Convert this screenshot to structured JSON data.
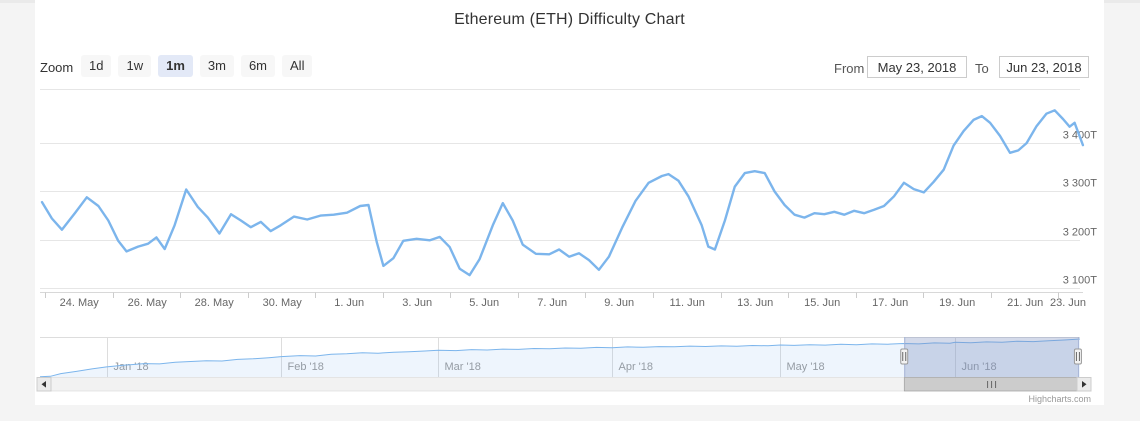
{
  "header": {
    "title": "Ethereum (ETH) Difficulty Chart"
  },
  "range_selector": {
    "zoom_label": "Zoom",
    "buttons": [
      {
        "label": "1d",
        "selected": false
      },
      {
        "label": "1w",
        "selected": false
      },
      {
        "label": "1m",
        "selected": true
      },
      {
        "label": "3m",
        "selected": false
      },
      {
        "label": "6m",
        "selected": false
      },
      {
        "label": "All",
        "selected": false
      }
    ],
    "from_label": "From",
    "from_value": "May 23, 2018",
    "to_label": "To",
    "to_value": "Jun 23, 2018"
  },
  "credit": "Highcharts.com",
  "colors": {
    "line": "#7cb5ec",
    "navigator_fill": "rgba(124,181,236,0.13)",
    "mask_fill": "rgba(120,140,190,0.32)",
    "gridline": "#e6e6e6",
    "axis_line": "#d8d8d8",
    "tick": "#cccccc",
    "axis_label": "#666666",
    "nav_label": "#999999",
    "selected_button_bg": "#e3e9f7"
  },
  "chart_data": [
    {
      "type": "line",
      "title": "Ethereum (ETH) Difficulty Chart",
      "xlabel": "",
      "ylabel": "",
      "grid": true,
      "legend": false,
      "x_unit": "days_since_2018-05-23",
      "x_range": [
        0,
        31.4
      ],
      "y_range": [
        3092,
        3512
      ],
      "y_ticks": [
        {
          "v": 3400,
          "label": "3 400T"
        },
        {
          "v": 3300,
          "label": "3 300T"
        },
        {
          "v": 3200,
          "label": "3 200T"
        },
        {
          "v": 3100,
          "label": "3 100T"
        }
      ],
      "x_tick_labels": [
        "24. May",
        "26. May",
        "28. May",
        "30. May",
        "1. Jun",
        "3. Jun",
        "5. Jun",
        "7. Jun",
        "9. Jun",
        "11. Jun",
        "13. Jun",
        "15. Jun",
        "17. Jun",
        "19. Jun",
        "21. Jun",
        "23. Jun"
      ],
      "series": [
        {
          "name": "Difficulty",
          "unit": "T",
          "points": [
            [
              0,
              3278
            ],
            [
              0.3,
              3244
            ],
            [
              0.6,
              3221
            ],
            [
              1.0,
              3256
            ],
            [
              1.35,
              3288
            ],
            [
              1.7,
              3270
            ],
            [
              2.0,
              3240
            ],
            [
              2.3,
              3198
            ],
            [
              2.55,
              3176
            ],
            [
              2.9,
              3186
            ],
            [
              3.2,
              3192
            ],
            [
              3.45,
              3205
            ],
            [
              3.7,
              3181
            ],
            [
              4.0,
              3230
            ],
            [
              4.35,
              3304
            ],
            [
              4.7,
              3268
            ],
            [
              5.0,
              3246
            ],
            [
              5.35,
              3213
            ],
            [
              5.7,
              3253
            ],
            [
              6.0,
              3240
            ],
            [
              6.3,
              3226
            ],
            [
              6.6,
              3237
            ],
            [
              6.9,
              3218
            ],
            [
              7.2,
              3230
            ],
            [
              7.6,
              3248
            ],
            [
              8.0,
              3242
            ],
            [
              8.4,
              3250
            ],
            [
              8.8,
              3252
            ],
            [
              9.2,
              3256
            ],
            [
              9.6,
              3270
            ],
            [
              9.85,
              3272
            ],
            [
              10.1,
              3195
            ],
            [
              10.3,
              3146
            ],
            [
              10.6,
              3162
            ],
            [
              10.9,
              3198
            ],
            [
              11.3,
              3202
            ],
            [
              11.7,
              3199
            ],
            [
              12.0,
              3206
            ],
            [
              12.3,
              3185
            ],
            [
              12.6,
              3140
            ],
            [
              12.9,
              3127
            ],
            [
              13.2,
              3160
            ],
            [
              13.6,
              3230
            ],
            [
              13.9,
              3276
            ],
            [
              14.2,
              3240
            ],
            [
              14.5,
              3190
            ],
            [
              14.9,
              3171
            ],
            [
              15.3,
              3170
            ],
            [
              15.6,
              3180
            ],
            [
              15.9,
              3165
            ],
            [
              16.2,
              3172
            ],
            [
              16.5,
              3158
            ],
            [
              16.8,
              3138
            ],
            [
              17.1,
              3165
            ],
            [
              17.5,
              3225
            ],
            [
              17.9,
              3280
            ],
            [
              18.3,
              3318
            ],
            [
              18.7,
              3332
            ],
            [
              18.9,
              3336
            ],
            [
              19.2,
              3322
            ],
            [
              19.5,
              3290
            ],
            [
              19.9,
              3230
            ],
            [
              20.1,
              3186
            ],
            [
              20.3,
              3180
            ],
            [
              20.6,
              3240
            ],
            [
              20.9,
              3310
            ],
            [
              21.2,
              3338
            ],
            [
              21.5,
              3342
            ],
            [
              21.8,
              3338
            ],
            [
              22.1,
              3300
            ],
            [
              22.4,
              3272
            ],
            [
              22.7,
              3252
            ],
            [
              23.0,
              3246
            ],
            [
              23.3,
              3255
            ],
            [
              23.6,
              3253
            ],
            [
              23.9,
              3258
            ],
            [
              24.2,
              3252
            ],
            [
              24.5,
              3260
            ],
            [
              24.8,
              3255
            ],
            [
              25.1,
              3262
            ],
            [
              25.4,
              3270
            ],
            [
              25.7,
              3290
            ],
            [
              26.0,
              3318
            ],
            [
              26.3,
              3305
            ],
            [
              26.6,
              3298
            ],
            [
              26.9,
              3320
            ],
            [
              27.2,
              3345
            ],
            [
              27.5,
              3395
            ],
            [
              27.8,
              3425
            ],
            [
              28.1,
              3448
            ],
            [
              28.35,
              3456
            ],
            [
              28.6,
              3442
            ],
            [
              28.9,
              3415
            ],
            [
              29.2,
              3380
            ],
            [
              29.45,
              3385
            ],
            [
              29.7,
              3400
            ],
            [
              30.0,
              3435
            ],
            [
              30.3,
              3461
            ],
            [
              30.55,
              3468
            ],
            [
              30.8,
              3450
            ],
            [
              31.0,
              3434
            ],
            [
              31.15,
              3442
            ],
            [
              31.4,
              3396
            ]
          ]
        }
      ]
    },
    {
      "type": "area",
      "name": "navigator",
      "x_unit": "fraction_of_range_Dec2017_to_Jun23_2018",
      "y_range": [
        2450,
        3500
      ],
      "month_ticks": [
        {
          "t": 0.064,
          "label": "Jan '18"
        },
        {
          "t": 0.232,
          "label": "Feb '18"
        },
        {
          "t": 0.383,
          "label": "Mar '18"
        },
        {
          "t": 0.55,
          "label": "Apr '18"
        },
        {
          "t": 0.712,
          "label": "May '18"
        },
        {
          "t": 0.88,
          "label": "Jun '18"
        }
      ],
      "selected_range_t": [
        0.831,
        0.998
      ],
      "points": [
        [
          0,
          2455
        ],
        [
          0.01,
          2468
        ],
        [
          0.02,
          2540
        ],
        [
          0.035,
          2598
        ],
        [
          0.05,
          2662
        ],
        [
          0.064,
          2715
        ],
        [
          0.08,
          2758
        ],
        [
          0.1,
          2802
        ],
        [
          0.115,
          2793
        ],
        [
          0.13,
          2838
        ],
        [
          0.145,
          2856
        ],
        [
          0.16,
          2878
        ],
        [
          0.175,
          2871
        ],
        [
          0.19,
          2912
        ],
        [
          0.205,
          2928
        ],
        [
          0.22,
          2957
        ],
        [
          0.232,
          2985
        ],
        [
          0.25,
          3012
        ],
        [
          0.265,
          3002
        ],
        [
          0.28,
          3048
        ],
        [
          0.295,
          3060
        ],
        [
          0.31,
          3085
        ],
        [
          0.325,
          3076
        ],
        [
          0.34,
          3102
        ],
        [
          0.355,
          3115
        ],
        [
          0.37,
          3132
        ],
        [
          0.383,
          3150
        ],
        [
          0.4,
          3142
        ],
        [
          0.415,
          3168
        ],
        [
          0.43,
          3158
        ],
        [
          0.445,
          3182
        ],
        [
          0.46,
          3174
        ],
        [
          0.475,
          3198
        ],
        [
          0.49,
          3190
        ],
        [
          0.505,
          3212
        ],
        [
          0.52,
          3204
        ],
        [
          0.535,
          3226
        ],
        [
          0.55,
          3218
        ],
        [
          0.565,
          3240
        ],
        [
          0.58,
          3230
        ],
        [
          0.595,
          3248
        ],
        [
          0.61,
          3242
        ],
        [
          0.625,
          3260
        ],
        [
          0.64,
          3250
        ],
        [
          0.655,
          3266
        ],
        [
          0.67,
          3258
        ],
        [
          0.685,
          3278
        ],
        [
          0.7,
          3270
        ],
        [
          0.712,
          3290
        ],
        [
          0.725,
          3280
        ],
        [
          0.74,
          3298
        ],
        [
          0.755,
          3288
        ],
        [
          0.77,
          3308
        ],
        [
          0.785,
          3298
        ],
        [
          0.8,
          3318
        ],
        [
          0.815,
          3310
        ],
        [
          0.83,
          3330
        ],
        [
          0.845,
          3320
        ],
        [
          0.86,
          3344
        ],
        [
          0.875,
          3336
        ],
        [
          0.88,
          3360
        ],
        [
          0.895,
          3348
        ],
        [
          0.91,
          3372
        ],
        [
          0.925,
          3362
        ],
        [
          0.94,
          3390
        ],
        [
          0.955,
          3378
        ],
        [
          0.97,
          3404
        ],
        [
          0.985,
          3420
        ],
        [
          1,
          3448
        ]
      ]
    }
  ]
}
